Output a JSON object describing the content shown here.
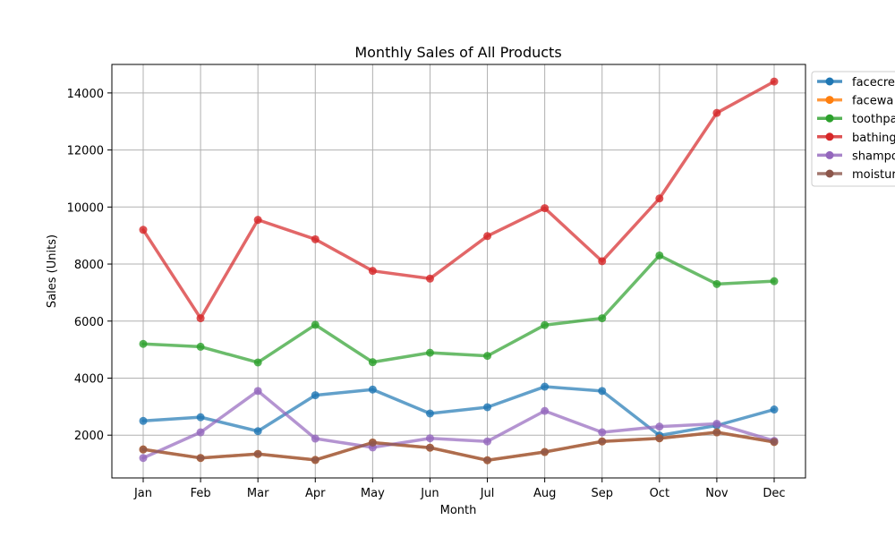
{
  "chart_data": {
    "type": "line",
    "title": "Monthly Sales of All Products",
    "xlabel": "Month",
    "ylabel": "Sales (Units)",
    "categories": [
      "Jan",
      "Feb",
      "Mar",
      "Apr",
      "May",
      "Jun",
      "Jul",
      "Aug",
      "Sep",
      "Oct",
      "Nov",
      "Dec"
    ],
    "ylim": [
      500,
      15000
    ],
    "yticks": [
      2000,
      4000,
      6000,
      8000,
      10000,
      12000,
      14000
    ],
    "grid": true,
    "legend_position": "right, outside plot (clipped)",
    "series": [
      {
        "name": "facecre",
        "color": "#1f77b4",
        "values": [
          2500,
          2630,
          2140,
          3400,
          3600,
          2760,
          2980,
          3700,
          3550,
          1990,
          2340,
          2900
        ]
      },
      {
        "name": "facewa",
        "color": "#ff7f0e",
        "values": [
          1500,
          1200,
          1340,
          1130,
          1740,
          1560,
          1120,
          1410,
          1780,
          1890,
          2100,
          1760
        ]
      },
      {
        "name": "toothpa",
        "color": "#2ca02c",
        "values": [
          5200,
          5100,
          4550,
          5870,
          4560,
          4890,
          4780,
          5860,
          6100,
          8300,
          7300,
          7400
        ]
      },
      {
        "name": "bathing",
        "color": "#d62728",
        "values": [
          9200,
          6100,
          9550,
          8870,
          7760,
          7490,
          8980,
          9960,
          8100,
          10300,
          13300,
          14400
        ]
      },
      {
        "name": "shampo",
        "color": "#9467bd",
        "values": [
          1200,
          2100,
          3550,
          1880,
          1570,
          1890,
          1780,
          2850,
          2100,
          2300,
          2400,
          1800
        ]
      },
      {
        "name": "moistur",
        "color": "#8c564b",
        "values": [
          1500,
          1200,
          1340,
          1130,
          1740,
          1560,
          1120,
          1410,
          1780,
          1890,
          2100,
          1760
        ]
      }
    ]
  }
}
